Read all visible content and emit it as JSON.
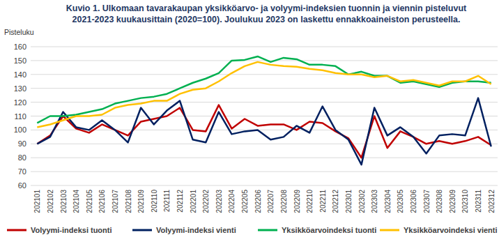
{
  "chart_data": {
    "type": "line",
    "title": "Kuvio 1. Ulkomaan tavarakaupan yksikköarvo- ja volyymi-indeksien tuonnin ja viennin pisteluvut\n2021-2023  kuukausittain (2020=100). Joulukuu 2023 on laskettu ennakkoaineiston perusteella.",
    "ylabel": "Pisteluku",
    "categories": [
      "202101",
      "202102",
      "202103",
      "202104",
      "202105",
      "202106",
      "202107",
      "202108",
      "202109",
      "202110",
      "202111",
      "202112",
      "202201",
      "202202",
      "202203",
      "202204",
      "202205",
      "202206",
      "202207",
      "202208",
      "202209",
      "202210",
      "202211",
      "202212",
      "202301",
      "202302",
      "202303",
      "202304",
      "202305",
      "202306",
      "202307",
      "202308",
      "202309",
      "202310",
      "202311",
      "202312"
    ],
    "series": [
      {
        "name": "Volyymi-indeksi tuonti",
        "color": "#c00000",
        "values": [
          90,
          96,
          110,
          101,
          98,
          104,
          100,
          96,
          106,
          108,
          110,
          116,
          100,
          99,
          118,
          101,
          108,
          103,
          104,
          104,
          100,
          106,
          105,
          99,
          94,
          80,
          110,
          87,
          99,
          95,
          90,
          92,
          90,
          92,
          95,
          89
        ]
      },
      {
        "name": "Volyymi-indeksi vienti",
        "color": "#002060",
        "values": [
          90,
          95,
          113,
          102,
          100,
          107,
          100,
          91,
          116,
          104,
          114,
          121,
          93,
          91,
          113,
          97,
          99,
          100,
          93,
          95,
          103,
          98,
          117,
          100,
          93,
          75,
          116,
          96,
          102,
          95,
          83,
          96,
          97,
          96,
          123,
          88
        ]
      },
      {
        "name": "Yksikköarvoindeksi tuonti",
        "color": "#00b050",
        "values": [
          105,
          110,
          110,
          111,
          113,
          115,
          119,
          121,
          123,
          124,
          126,
          130,
          134,
          137,
          141,
          150,
          150.5,
          153,
          149,
          152,
          151,
          147,
          147,
          146,
          140,
          142,
          139,
          139,
          134,
          135,
          133,
          131,
          134,
          135,
          135,
          134
        ]
      },
      {
        "name": "Yksikköarvoindeksi vienti",
        "color": "#ffc000",
        "values": [
          102,
          104,
          107,
          110,
          110,
          111,
          116,
          118,
          119,
          121,
          121,
          126,
          129,
          130,
          135,
          141,
          146,
          149,
          147,
          146,
          145.5,
          144,
          143,
          141,
          140,
          140,
          138,
          139,
          135,
          136,
          134,
          132,
          135,
          135,
          139,
          133
        ]
      }
    ],
    "ylim": [
      60,
      160
    ],
    "yticks": [
      60,
      70,
      80,
      90,
      100,
      110,
      120,
      130,
      140,
      150,
      160
    ],
    "grid": true,
    "legend": "bottom"
  }
}
